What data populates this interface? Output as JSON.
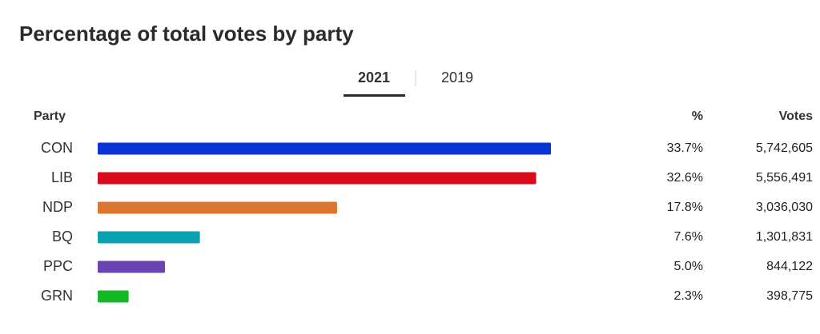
{
  "chart_data": {
    "type": "bar",
    "title": "Percentage of total votes by party",
    "tabs": [
      "2021",
      "2019"
    ],
    "columns": [
      "Party",
      "%",
      "Votes"
    ],
    "categories": [
      "CON",
      "LIB",
      "NDP",
      "BQ",
      "PPC",
      "GRN"
    ],
    "values": [
      33.7,
      32.6,
      17.8,
      7.6,
      5.0,
      2.3
    ],
    "value_labels": [
      "33.7%",
      "32.6%",
      "17.8%",
      "7.6%",
      "5.0%",
      "2.3%"
    ],
    "votes": [
      "5,742,605",
      "5,556,491",
      "3,036,030",
      "1,301,831",
      "844,122",
      "398,775"
    ],
    "colors": [
      "#0a34d6",
      "#d80a1b",
      "#dd7530",
      "#0aa0b4",
      "#6a44b2",
      "#14b824"
    ]
  }
}
